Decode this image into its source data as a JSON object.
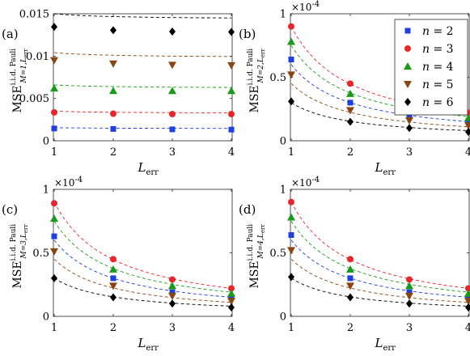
{
  "chart_data": [
    {
      "type": "scatter",
      "panel_label": "(a)",
      "ylabel": {
        "main": "MSE",
        "sup": "i.i.d. Pauli",
        "sub": "M=1,L"
      },
      "xlabel": "L",
      "xlabel_sub": "err",
      "ylabel_sub_tail": "err",
      "exponent_label": "",
      "x": [
        1,
        2,
        3,
        4
      ],
      "xlim": [
        1,
        4
      ],
      "ylim": [
        0,
        0.015
      ],
      "yticks": [
        0,
        0.005,
        0.01,
        0.015
      ],
      "yticklabels": [
        "0",
        "0.005",
        "0.01",
        "0.015"
      ],
      "xticklabels": [
        "1",
        "2",
        "3",
        "4"
      ],
      "grid": false,
      "series": [
        {
          "name": "n = 2",
          "values": [
            0.00145,
            0.0014,
            0.00135,
            0.00132
          ],
          "fit": [
            0.00155,
            0.0015,
            0.00148,
            0.00146
          ],
          "color": "#1f3fe0",
          "marker": "square"
        },
        {
          "name": "n = 3",
          "values": [
            0.00335,
            0.0032,
            0.00315,
            0.00315
          ],
          "fit": [
            0.0035,
            0.00335,
            0.0033,
            0.0033
          ],
          "color": "#e8262a",
          "marker": "circle"
        },
        {
          "name": "n = 4",
          "values": [
            0.0062,
            0.0059,
            0.0059,
            0.0059
          ],
          "fit": [
            0.0066,
            0.00645,
            0.00635,
            0.0063
          ],
          "color": "#1a9a1a",
          "marker": "triangle-up"
        },
        {
          "name": "n = 5",
          "values": [
            0.0095,
            0.0091,
            0.00895,
            0.0089
          ],
          "fit": [
            0.0104,
            0.01015,
            0.01,
            0.00995
          ],
          "color": "#8b4513",
          "marker": "triangle-down"
        },
        {
          "name": "n = 6",
          "values": [
            0.01345,
            0.01305,
            0.0129,
            0.01285
          ],
          "fit": [
            0.015,
            0.01475,
            0.0146,
            0.0145
          ],
          "color": "#000000",
          "marker": "diamond"
        }
      ]
    },
    {
      "type": "scatter",
      "panel_label": "(b)",
      "ylabel": {
        "main": "MSE",
        "sup": "i.i.d. Pauli",
        "sub": "M=2,L"
      },
      "xlabel": "L",
      "xlabel_sub": "err",
      "ylabel_sub_tail": "err",
      "exponent_label": "×10",
      "exponent_power": "-4",
      "x": [
        1,
        2,
        3,
        4
      ],
      "xlim": [
        1,
        4
      ],
      "ylim": [
        0,
        1
      ],
      "yticks": [
        0,
        0.5,
        1
      ],
      "yticklabels": [
        "0",
        "0.5",
        "1"
      ],
      "xticklabels": [
        "1",
        "2",
        "3",
        "4"
      ],
      "grid": false,
      "legend_position": "top-right",
      "series": [
        {
          "name": "n = 2",
          "values": [
            0.64,
            0.3,
            0.19,
            0.15
          ],
          "fit": [
            0.6,
            0.3,
            0.2,
            0.15
          ],
          "color": "#1f3fe0",
          "marker": "square"
        },
        {
          "name": "n = 3",
          "values": [
            0.9,
            0.45,
            0.29,
            0.22
          ],
          "fit": [
            0.9,
            0.45,
            0.3,
            0.22
          ],
          "color": "#e8262a",
          "marker": "circle"
        },
        {
          "name": "n = 4",
          "values": [
            0.78,
            0.37,
            0.24,
            0.18
          ],
          "fit": [
            0.75,
            0.37,
            0.25,
            0.19
          ],
          "color": "#1a9a1a",
          "marker": "triangle-up"
        },
        {
          "name": "n = 5",
          "values": [
            0.52,
            0.24,
            0.16,
            0.12
          ],
          "fit": [
            0.45,
            0.23,
            0.15,
            0.11
          ],
          "color": "#8b4513",
          "marker": "triangle-down"
        },
        {
          "name": "n = 6",
          "values": [
            0.31,
            0.15,
            0.1,
            0.07
          ],
          "fit": [
            0.3,
            0.15,
            0.1,
            0.08
          ],
          "color": "#000000",
          "marker": "diamond"
        }
      ]
    },
    {
      "type": "scatter",
      "panel_label": "(c)",
      "ylabel": {
        "main": "MSE",
        "sup": "i.i.d. Pauli",
        "sub": "M=3,L"
      },
      "xlabel": "L",
      "xlabel_sub": "err",
      "ylabel_sub_tail": "err",
      "exponent_label": "×10",
      "exponent_power": "-4",
      "x": [
        1,
        2,
        3,
        4
      ],
      "xlim": [
        1,
        4
      ],
      "ylim": [
        0,
        1
      ],
      "yticks": [
        0,
        0.5,
        1
      ],
      "yticklabels": [
        "0",
        "0.5",
        "1"
      ],
      "xticklabels": [
        "1",
        "2",
        "3",
        "4"
      ],
      "grid": false,
      "series": [
        {
          "name": "n = 2",
          "values": [
            0.63,
            0.3,
            0.19,
            0.15
          ],
          "fit": [
            0.6,
            0.3,
            0.2,
            0.15
          ],
          "color": "#1f3fe0",
          "marker": "square"
        },
        {
          "name": "n = 3",
          "values": [
            0.89,
            0.45,
            0.29,
            0.22
          ],
          "fit": [
            0.9,
            0.45,
            0.3,
            0.22
          ],
          "color": "#e8262a",
          "marker": "circle"
        },
        {
          "name": "n = 4",
          "values": [
            0.77,
            0.37,
            0.24,
            0.18
          ],
          "fit": [
            0.75,
            0.37,
            0.25,
            0.19
          ],
          "color": "#1a9a1a",
          "marker": "triangle-up"
        },
        {
          "name": "n = 5",
          "values": [
            0.51,
            0.24,
            0.16,
            0.12
          ],
          "fit": [
            0.45,
            0.23,
            0.15,
            0.11
          ],
          "color": "#8b4513",
          "marker": "triangle-down"
        },
        {
          "name": "n = 6",
          "values": [
            0.3,
            0.15,
            0.1,
            0.07
          ],
          "fit": [
            0.3,
            0.15,
            0.1,
            0.08
          ],
          "color": "#000000",
          "marker": "diamond"
        }
      ]
    },
    {
      "type": "scatter",
      "panel_label": "(d)",
      "ylabel": {
        "main": "MSE",
        "sup": "i.i.d. Pauli",
        "sub": "M=4,L"
      },
      "xlabel": "L",
      "xlabel_sub": "err",
      "ylabel_sub_tail": "err",
      "exponent_label": "×10",
      "exponent_power": "-4",
      "x": [
        1,
        2,
        3,
        4
      ],
      "xlim": [
        1,
        4
      ],
      "ylim": [
        0,
        1
      ],
      "yticks": [
        0,
        0.5,
        1
      ],
      "yticklabels": [
        "0",
        "0.5",
        "1"
      ],
      "xticklabels": [
        "1",
        "2",
        "3",
        "4"
      ],
      "grid": false,
      "series": [
        {
          "name": "n = 2",
          "values": [
            0.64,
            0.3,
            0.19,
            0.15
          ],
          "fit": [
            0.6,
            0.3,
            0.2,
            0.15
          ],
          "color": "#1f3fe0",
          "marker": "square"
        },
        {
          "name": "n = 3",
          "values": [
            0.9,
            0.45,
            0.29,
            0.22
          ],
          "fit": [
            0.9,
            0.45,
            0.3,
            0.22
          ],
          "color": "#e8262a",
          "marker": "circle"
        },
        {
          "name": "n = 4",
          "values": [
            0.78,
            0.37,
            0.24,
            0.18
          ],
          "fit": [
            0.75,
            0.37,
            0.25,
            0.19
          ],
          "color": "#1a9a1a",
          "marker": "triangle-up"
        },
        {
          "name": "n = 5",
          "values": [
            0.52,
            0.24,
            0.16,
            0.12
          ],
          "fit": [
            0.45,
            0.23,
            0.15,
            0.11
          ],
          "color": "#8b4513",
          "marker": "triangle-down"
        },
        {
          "name": "n = 6",
          "values": [
            0.31,
            0.15,
            0.1,
            0.07
          ],
          "fit": [
            0.3,
            0.15,
            0.1,
            0.08
          ],
          "color": "#000000",
          "marker": "diamond"
        }
      ]
    }
  ],
  "legend": {
    "entries": [
      {
        "var": "n",
        "text": " = 2",
        "color": "#1f3fe0",
        "marker": "square"
      },
      {
        "var": "n",
        "text": " = 3",
        "color": "#e8262a",
        "marker": "circle"
      },
      {
        "var": "n",
        "text": " = 4",
        "color": "#1a9a1a",
        "marker": "triangle-up"
      },
      {
        "var": "n",
        "text": " = 5",
        "color": "#8b4513",
        "marker": "triangle-down"
      },
      {
        "var": "n",
        "text": " = 6",
        "color": "#000000",
        "marker": "diamond"
      }
    ]
  }
}
